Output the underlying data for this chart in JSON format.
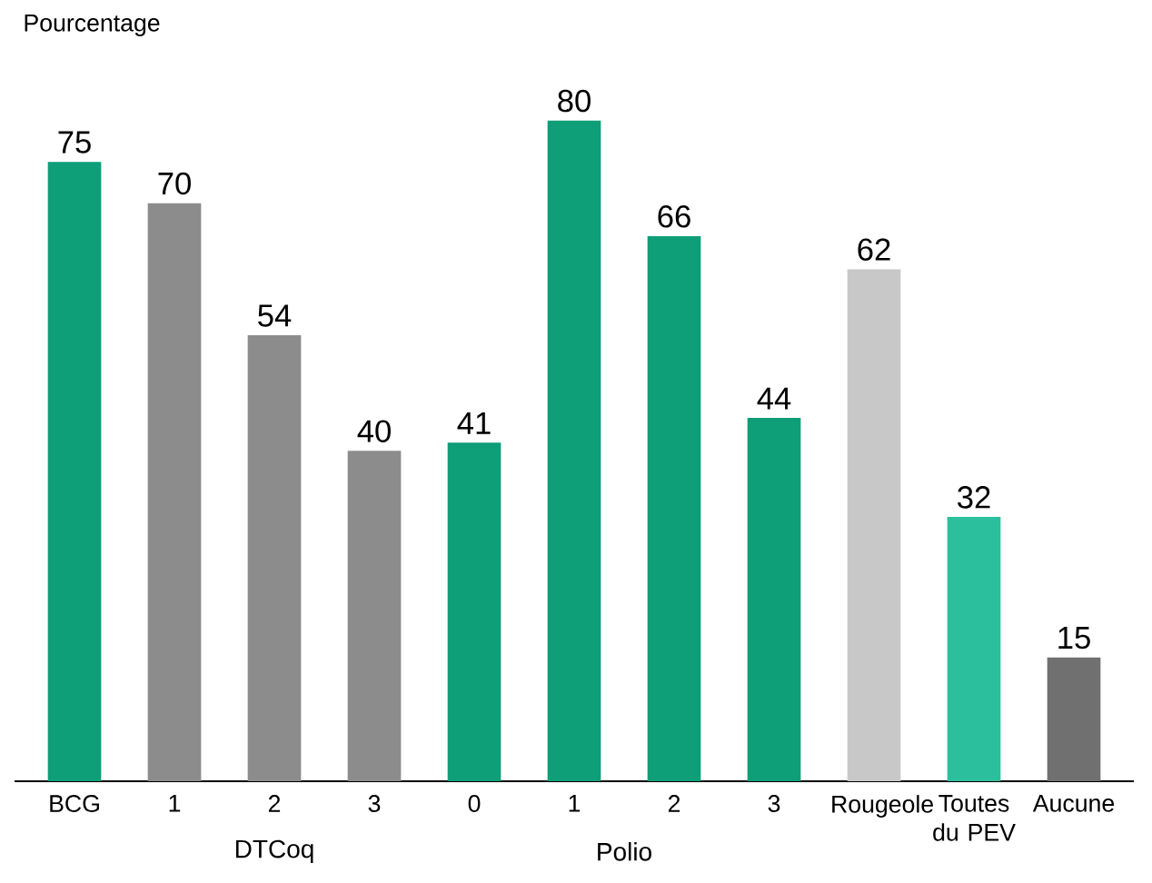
{
  "chart_data": {
    "type": "bar",
    "ylabel": "Pourcentage",
    "categories": [
      "BCG",
      "1",
      "2",
      "3",
      "0",
      "1",
      "2",
      "3",
      "Rougeole",
      "Toutes du PEV",
      "Aucune"
    ],
    "values": [
      75,
      70,
      54,
      40,
      41,
      80,
      66,
      44,
      62,
      32,
      15
    ],
    "colors": [
      "#0e9e78",
      "#8c8c8c",
      "#8c8c8c",
      "#8c8c8c",
      "#0e9e78",
      "#0e9e78",
      "#0e9e78",
      "#0e9e78",
      "#c8c8c8",
      "#2bbf9e",
      "#707070"
    ],
    "data_labels": true,
    "annotations": [
      "DTCoq",
      "Polio"
    ]
  }
}
